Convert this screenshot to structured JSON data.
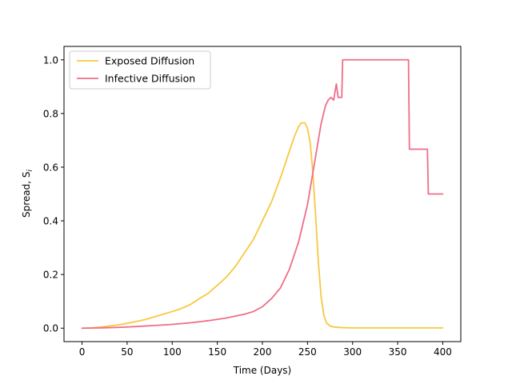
{
  "chart_data": {
    "type": "line",
    "title": "",
    "xlabel": "Time (Days)",
    "ylabel": "Spread, S",
    "ylabel_subscript": "i",
    "xlim": [
      -20,
      420
    ],
    "ylim": [
      -0.05,
      1.05
    ],
    "xticks": [
      0,
      50,
      100,
      150,
      200,
      250,
      300,
      350,
      400
    ],
    "yticks": [
      0.0,
      0.2,
      0.4,
      0.6,
      0.8,
      1.0
    ],
    "xtick_labels": [
      "0",
      "50",
      "100",
      "150",
      "200",
      "250",
      "300",
      "350",
      "400"
    ],
    "ytick_labels": [
      "0.0",
      "0.2",
      "0.4",
      "0.6",
      "0.8",
      "1.0"
    ],
    "grid": false,
    "legend_position": "upper-left",
    "series": [
      {
        "name": "Exposed Diffusion",
        "color": "#f7c840",
        "x": [
          0,
          10,
          20,
          30,
          40,
          50,
          60,
          70,
          80,
          90,
          100,
          110,
          120,
          130,
          140,
          150,
          160,
          170,
          180,
          190,
          200,
          210,
          220,
          230,
          235,
          240,
          243,
          247,
          250,
          253,
          256,
          259,
          262,
          265,
          268,
          271,
          275,
          280,
          290,
          300,
          350,
          400
        ],
        "y": [
          0.0,
          0.001,
          0.004,
          0.008,
          0.012,
          0.018,
          0.025,
          0.032,
          0.042,
          0.052,
          0.062,
          0.073,
          0.088,
          0.11,
          0.13,
          0.16,
          0.19,
          0.23,
          0.28,
          0.33,
          0.4,
          0.47,
          0.56,
          0.66,
          0.71,
          0.75,
          0.765,
          0.765,
          0.745,
          0.69,
          0.58,
          0.42,
          0.25,
          0.12,
          0.05,
          0.02,
          0.008,
          0.004,
          0.002,
          0.001,
          0.001,
          0.001
        ]
      },
      {
        "name": "Infective Diffusion",
        "color": "#ee6e88",
        "x": [
          0,
          20,
          40,
          60,
          80,
          100,
          120,
          140,
          160,
          180,
          190,
          200,
          210,
          220,
          230,
          240,
          250,
          255,
          260,
          265,
          270,
          273,
          276,
          279,
          282,
          284,
          286,
          288,
          289,
          290,
          362,
          363,
          383,
          384,
          400
        ],
        "y": [
          0.0,
          0.001,
          0.003,
          0.006,
          0.01,
          0.014,
          0.02,
          0.028,
          0.038,
          0.052,
          0.062,
          0.08,
          0.11,
          0.15,
          0.22,
          0.32,
          0.46,
          0.56,
          0.66,
          0.76,
          0.83,
          0.85,
          0.86,
          0.85,
          0.91,
          0.86,
          0.86,
          0.86,
          1.0,
          1.0,
          1.0,
          0.667,
          0.667,
          0.5,
          0.5
        ]
      }
    ]
  }
}
